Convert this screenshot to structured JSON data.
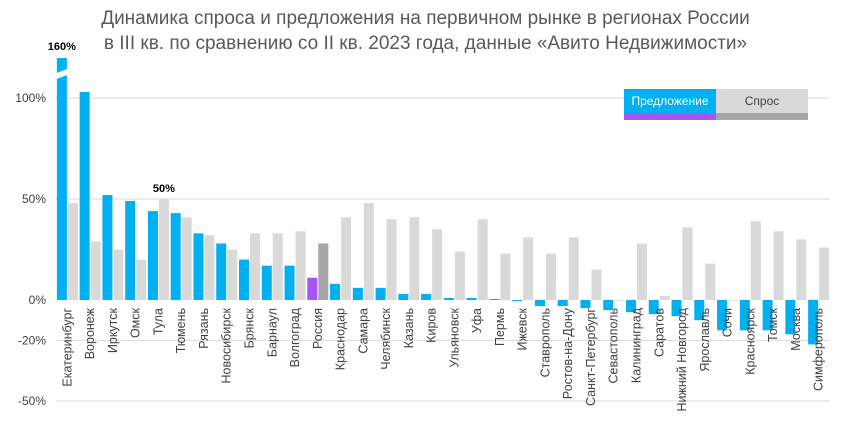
{
  "title_line1": "Динамика спроса и предложения на первичном рынке в регионах России",
  "title_line2": "в III кв. по сравнению со II кв. 2023 года, данные «Авито Недвижимости»",
  "chart_data": {
    "type": "bar",
    "title": "Динамика спроса и предложения на первичном рынке в регионах России в III кв. по сравнению со II кв. 2023 года, данные «Авито Недвижимости»",
    "categories": [
      "Екатеринбург",
      "Воронеж",
      "Иркутск",
      "Омск",
      "Тула",
      "Тюмень",
      "Рязань",
      "Новосибирск",
      "Брянск",
      "Барнаул",
      "Волгоград",
      "Россия",
      "Краснодар",
      "Самара",
      "Челябинск",
      "Казань",
      "Киров",
      "Ульяновск",
      "Уфа",
      "Пермь",
      "Ижевск",
      "Ставрополь",
      "Ростов-на-Дону",
      "Санкт-Петербург",
      "Севастополь",
      "Калининград",
      "Саратов",
      "Нижний Новгород",
      "Ярославль",
      "Сочи",
      "Красноярск",
      "Томск",
      "Москва",
      "Симферополь"
    ],
    "series": [
      {
        "name": "Предложение",
        "color": "#00b0f0",
        "values": [
          160,
          103,
          52,
          49,
          44,
          43,
          33,
          28,
          20,
          17,
          17,
          11,
          8,
          6,
          6,
          3,
          3,
          1,
          1,
          0.5,
          -0.5,
          -3,
          -3,
          -4,
          -5,
          -6,
          -7,
          -8,
          -10,
          -15,
          -15,
          -15,
          -17,
          -22
        ]
      },
      {
        "name": "Спрос",
        "color": "#d9d9d9",
        "values": [
          48,
          29,
          25,
          20,
          50,
          41,
          32,
          25,
          33,
          33,
          34,
          28,
          41,
          48,
          40,
          41,
          35,
          24,
          40,
          23,
          31,
          23,
          31,
          15,
          0,
          28,
          2,
          36,
          18,
          0,
          39,
          34,
          30,
          26
        ]
      }
    ],
    "highlights": {
      "Россия": {
        "Предложение": "#a855f7",
        "Спрос": "#a6a6a6"
      }
    },
    "data_labels": [
      {
        "category": "Екатеринбург",
        "series": "Предложение",
        "text": "160%"
      },
      {
        "category": "Тула",
        "series": "Спрос",
        "text": "50%"
      }
    ],
    "yticks": [
      {
        "value": 100,
        "label": "100%"
      },
      {
        "value": 50,
        "label": "50%"
      },
      {
        "value": 0,
        "label": "0%"
      },
      {
        "value": -20,
        "label": "-20%"
      },
      {
        "value": -50,
        "label": "-50%"
      }
    ],
    "ylim": [
      -50,
      115
    ],
    "axis_break": {
      "series": "Предложение",
      "category": "Екатеринбург",
      "actual": 160
    },
    "grid": true,
    "legend_position": "top-right",
    "legend": [
      {
        "label": "Предложение",
        "color": "#00b0f0",
        "underline": "#a855f7"
      },
      {
        "label": "Спрос",
        "color": "#d9d9d9",
        "underline": "#a6a6a6"
      }
    ]
  }
}
